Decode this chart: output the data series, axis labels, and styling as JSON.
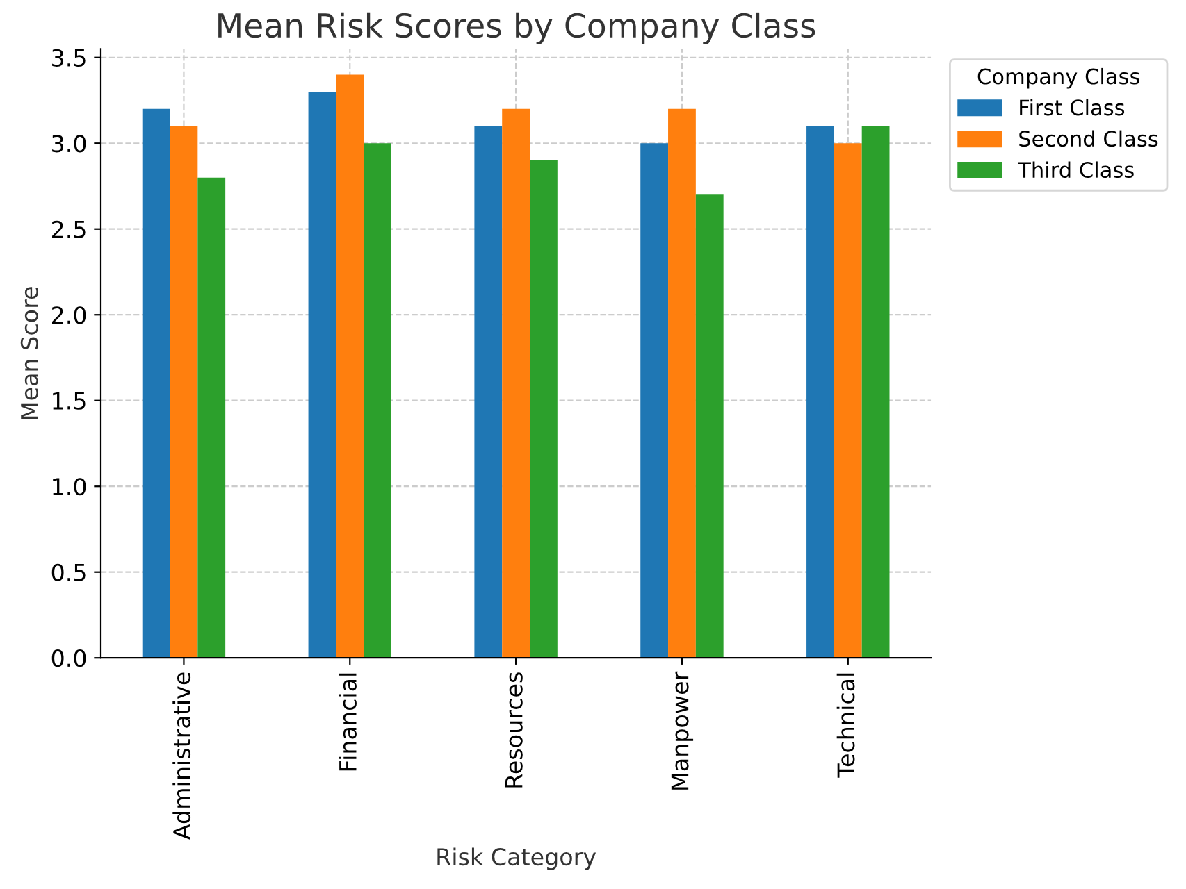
{
  "chart_data": {
    "type": "bar",
    "title": "Mean Risk Scores by Company Class",
    "xlabel": "Risk Category",
    "ylabel": "Mean Score",
    "legend_title": "Company Class",
    "categories": [
      "Administrative",
      "Financial",
      "Resources",
      "Manpower",
      "Technical"
    ],
    "series": [
      {
        "name": "First Class",
        "color": "#1f77b4",
        "values": [
          3.2,
          3.3,
          3.1,
          3.0,
          3.1
        ]
      },
      {
        "name": "Second Class",
        "color": "#ff7f0e",
        "values": [
          3.1,
          3.4,
          3.2,
          3.2,
          3.0
        ]
      },
      {
        "name": "Third Class",
        "color": "#2ca02c",
        "values": [
          2.8,
          3.0,
          2.9,
          2.7,
          3.1
        ]
      }
    ],
    "ylim": [
      0,
      3.55
    ],
    "yticks": [
      {
        "value": 0,
        "label": "0.0"
      },
      {
        "value": 0.5,
        "label": "0.5"
      },
      {
        "value": 1,
        "label": "1.0"
      },
      {
        "value": 1.5,
        "label": "1.5"
      },
      {
        "value": 2,
        "label": "2.0"
      },
      {
        "value": 2.5,
        "label": "2.5"
      },
      {
        "value": 3,
        "label": "3.0"
      },
      {
        "value": 3.5,
        "label": "3.5"
      }
    ],
    "grid": true,
    "legend": "right"
  }
}
